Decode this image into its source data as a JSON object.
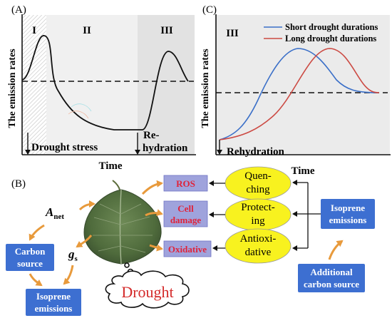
{
  "panels": {
    "a": {
      "letter": "(A)",
      "phases": [
        "I",
        "II",
        "III"
      ],
      "ylabel": "The emission rates",
      "xlabel": "Time",
      "drought_label": "Drought stress",
      "rehydration_label": [
        "Re-",
        "hydration"
      ]
    },
    "c": {
      "letter": "(C)",
      "phase": "III",
      "ylabel": "The emission rates",
      "xlabel": "Time",
      "rehydration_label": "Rehydration",
      "legend": {
        "short": "Short drought durations",
        "long": "Long drought durations"
      },
      "colors": {
        "short": "#3a6fc8",
        "long": "#cc4a43"
      }
    },
    "b": {
      "letter": "(B)",
      "effects": [
        "ROS",
        "Cell damage",
        "Oxidative"
      ],
      "effect_lines": [
        [
          "ROS"
        ],
        [
          "Cell",
          "damage"
        ],
        [
          "Oxidative"
        ]
      ],
      "functions": [
        [
          "Quen-",
          "ching"
        ],
        [
          "Protect-",
          "ing"
        ],
        [
          "Antioxi-",
          "dative"
        ]
      ],
      "isoprene_right": [
        "Isoprene",
        "emissions"
      ],
      "additional": [
        "Additional",
        "carbon source"
      ],
      "carbon_source": [
        "Carbon",
        "source"
      ],
      "isoprene_left": [
        "Isoprene",
        "emissions"
      ],
      "anet": {
        "main": "A",
        "sub": "net"
      },
      "gs": {
        "main": "g",
        "sub": "s"
      },
      "drought_cloud": "Drought",
      "colors": {
        "box_blue": "#3d6fd1",
        "box_lavender": "#9fa3dc",
        "effect_text": "#e0233a",
        "ellipse": "#f8f21f",
        "arrow_orange": "#e89a3c"
      }
    }
  }
}
